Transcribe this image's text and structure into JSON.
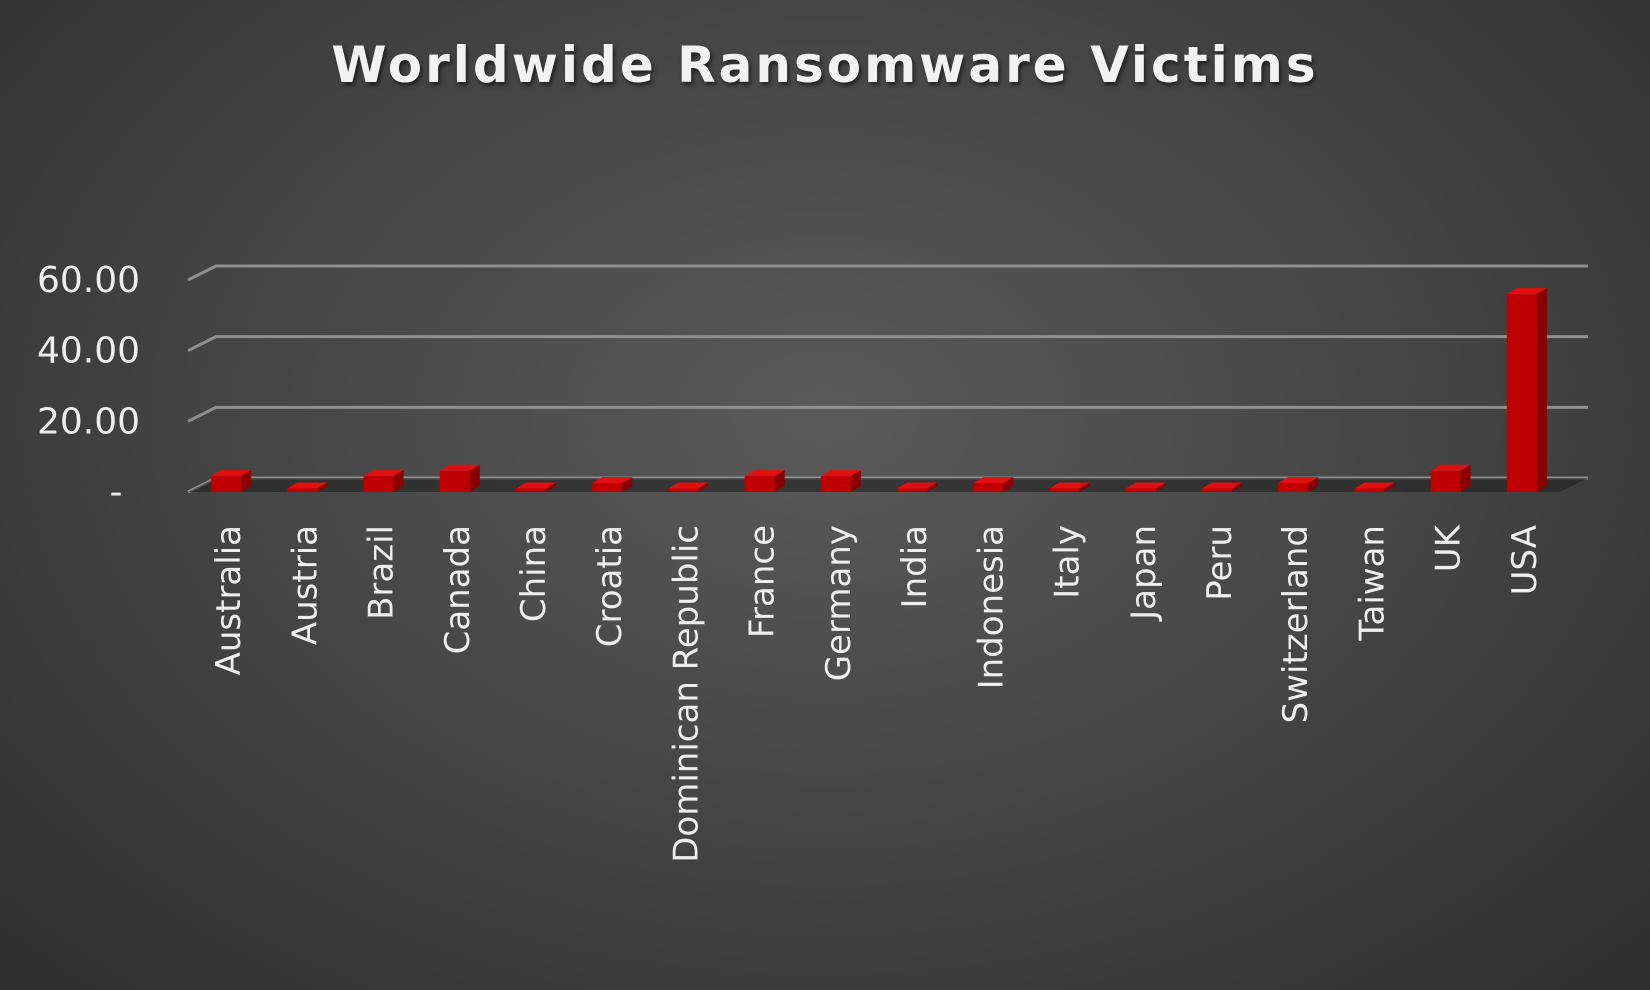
{
  "chart_data": {
    "type": "bar",
    "title": "Worldwide Ransomware Victims",
    "xlabel": "",
    "ylabel": "",
    "categories": [
      "Australia",
      "Austria",
      "Brazil",
      "Canada",
      "China",
      "Croatia",
      "Dominican Republic",
      "France",
      "Germany",
      "India",
      "Indonesia",
      "Italy",
      "Japan",
      "Peru",
      "Switzerland",
      "Taiwan",
      "UK",
      "USA"
    ],
    "values": [
      4.5,
      1.0,
      4.5,
      6.0,
      1.0,
      2.5,
      1.0,
      4.5,
      4.5,
      1.0,
      2.5,
      1.0,
      1.0,
      1.0,
      2.5,
      1.0,
      6.0,
      56.0
    ],
    "ylim": [
      0,
      60
    ],
    "yticks": [
      0,
      20,
      40,
      60
    ],
    "ytick_labels": [
      "-",
      "20.00",
      "40.00",
      "60.00"
    ],
    "grid": true,
    "legend": "none",
    "bar_color": "#c00000",
    "bar_top_color": "#e01010",
    "bar_side_color": "#8a0000"
  }
}
